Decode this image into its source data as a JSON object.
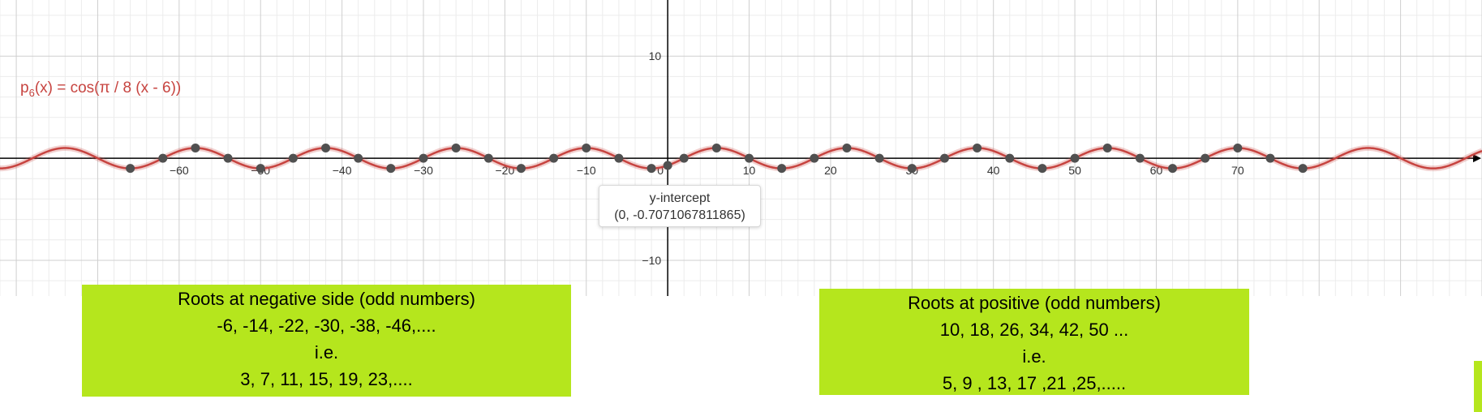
{
  "chart_data": {
    "type": "line",
    "title": "",
    "xlabel": "",
    "ylabel": "",
    "function_label_prefix": "p",
    "function_label_subscript": "6",
    "function_label_rest": "(x) = cos(π / 8 (x - 6))",
    "xlim": [
      -82,
      100
    ],
    "ylim": [
      -13.5,
      15.5
    ],
    "x_ticks": [
      -60,
      -50,
      -40,
      -30,
      -20,
      -10,
      0,
      10,
      20,
      30,
      40,
      50,
      60,
      70
    ],
    "x_tick_labels": [
      "−60",
      "−50",
      "−40",
      "−30",
      "−20",
      "−10",
      "0",
      "10",
      "20",
      "30",
      "40",
      "50",
      "60",
      "70"
    ],
    "y_ticks": [
      10,
      -10
    ],
    "y_tick_labels": [
      "10",
      "−10"
    ],
    "grid": true,
    "series": [
      {
        "expression": "cos(pi/8*(x-6))",
        "color": "#c74440"
      }
    ],
    "marked_points": {
      "maxima": [
        -58,
        -42,
        -26,
        -10,
        6,
        22,
        38,
        54,
        70
      ],
      "minima": [
        -66,
        -50,
        -34,
        -18,
        -2,
        14,
        30,
        46,
        62,
        78
      ],
      "roots": [
        -62,
        -54,
        -46,
        -38,
        -30,
        -22,
        -14,
        -6,
        2,
        10,
        18,
        26,
        34,
        42,
        50,
        58,
        66,
        74
      ]
    },
    "y_intercept": {
      "x": 0,
      "y": -0.7071067811865
    }
  },
  "tooltip": {
    "title": "y-intercept",
    "value": "(0, -0.7071067811865)"
  },
  "notes": {
    "left": {
      "line1": "Roots at negative side (odd numbers)",
      "line2": "-6, -14, -22, -30, -38, -46,....",
      "line3": "i.e.",
      "line4": "3, 7, 11, 15, 19, 23,...."
    },
    "right": {
      "line1": "Roots at positive (odd numbers)",
      "line2": "10, 18, 26, 34, 42, 50 ...",
      "line3": "i.e.",
      "line4": "5, 9 , 13, 17 ,21 ,25,....."
    }
  },
  "colors": {
    "curve": "#c74440",
    "points": "#505050",
    "note_background": "#b5e61d",
    "grid_minor": "#ececec",
    "grid_major": "#cfcfcf",
    "axis": "#000000"
  }
}
